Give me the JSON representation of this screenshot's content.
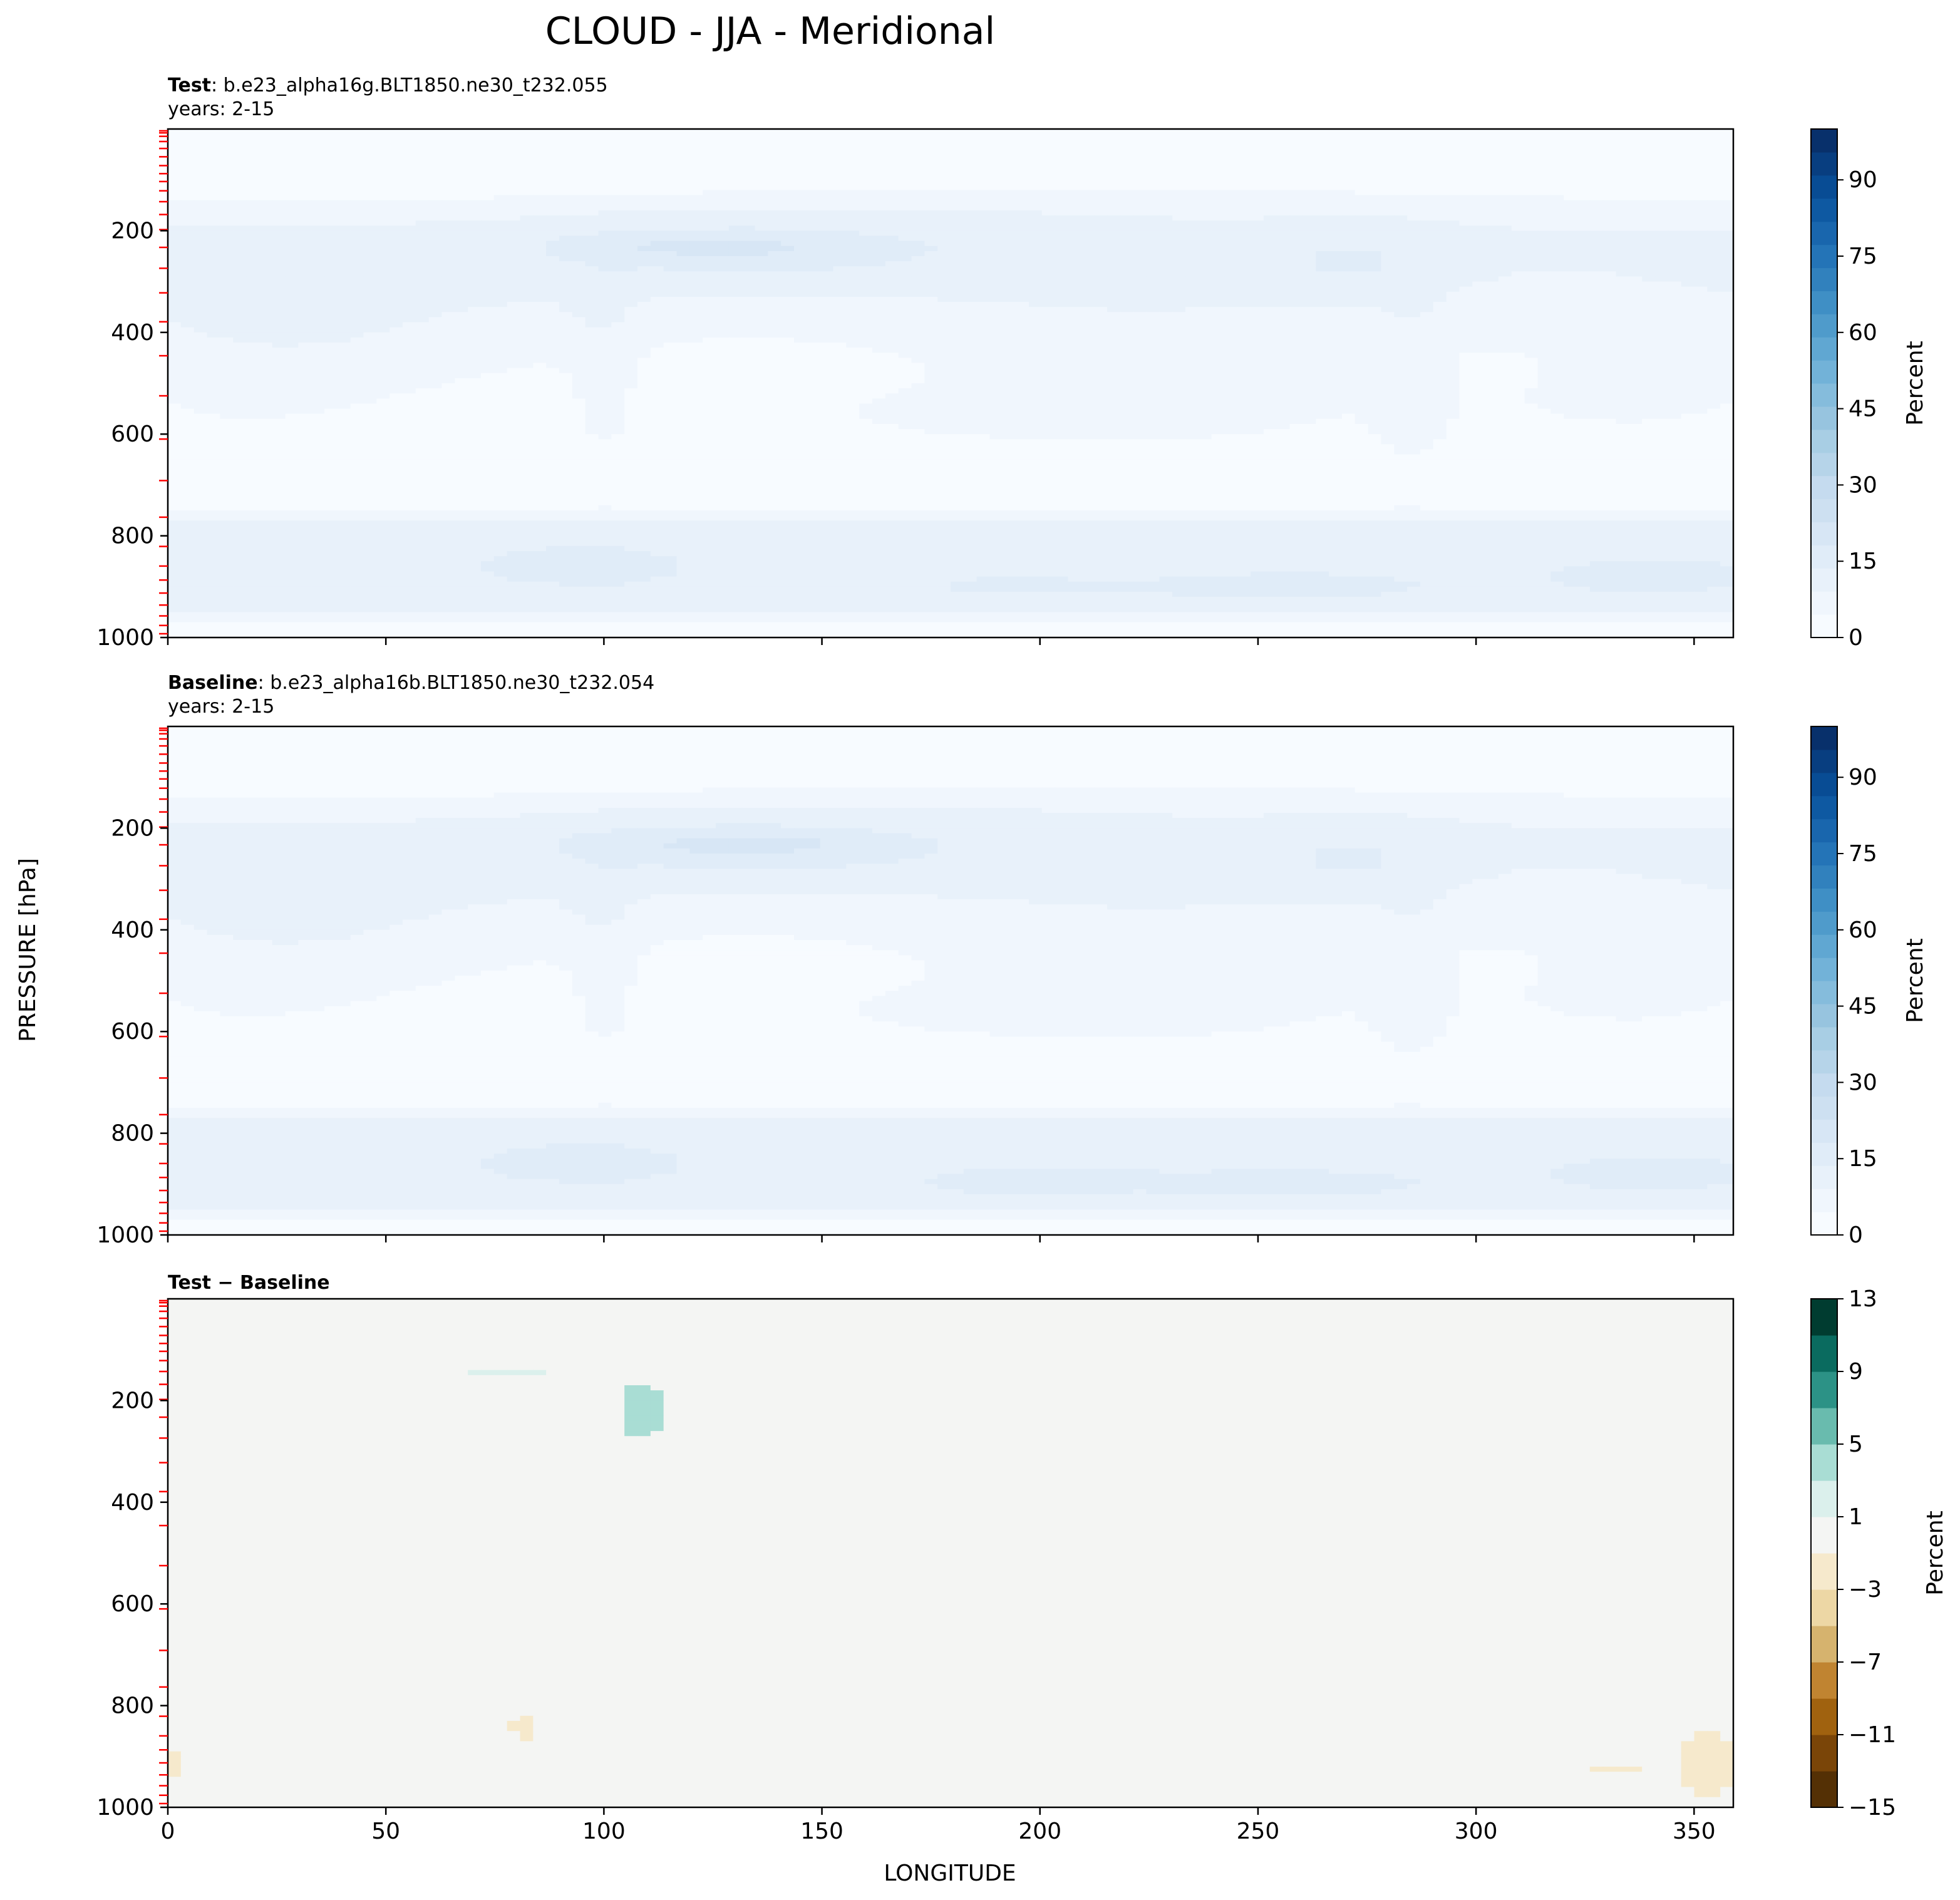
{
  "figure": {
    "title": "CLOUD - JJA - Meridional",
    "ylabel": "PRESSURE [hPa]",
    "xlabel": "LONGITUDE"
  },
  "colors": {
    "blues": [
      "#f7fbff",
      "#f0f6fd",
      "#e8f1fa",
      "#e0ecf8",
      "#d7e6f5",
      "#cde0f1",
      "#c5dbef",
      "#b6d4e9",
      "#a8cee4",
      "#97c4df",
      "#85bcdc",
      "#72b2d8",
      "#60a7d2",
      "#4f9bcb",
      "#3f8fc5",
      "#3181bd",
      "#2474b7",
      "#1966ad",
      "#0e59a2",
      "#084c94",
      "#083e80",
      "#08306b"
    ],
    "brbg": [
      "#543005",
      "#7a4508",
      "#a0620f",
      "#c08431",
      "#d6b36e",
      "#edd7a5",
      "#f6e9cc",
      "#f4f5f3",
      "#dbf0ec",
      "#a9ddd4",
      "#69bbae",
      "#2c9286",
      "#0a6b5f",
      "#003c30"
    ],
    "contour_markers": "#ff0000"
  },
  "chart_data": [
    {
      "type": "heatmap",
      "panel": "test",
      "label_bold": "Test",
      "label_rest": ": b.e23_alpha16g.BLT1850.ne30_t232.055",
      "years": "years: 2-15",
      "x_ticks": [
        "0",
        "50",
        "100",
        "150",
        "200",
        "250",
        "300",
        "350"
      ],
      "x_tick_values": [
        0,
        50,
        100,
        150,
        200,
        250,
        300,
        350
      ],
      "xlim": [
        0,
        359
      ],
      "y_ticks": [
        "200",
        "400",
        "600",
        "800",
        "1000"
      ],
      "y_tick_values": [
        200,
        400,
        600,
        800,
        1000
      ],
      "ylim": [
        1000,
        0
      ],
      "model_levels_hPa": [
        3.6,
        7.6,
        14.4,
        24.6,
        38.3,
        54.6,
        72.0,
        87.8,
        103.3,
        121.5,
        142.9,
        168.2,
        197.9,
        232.8,
        273.9,
        322.2,
        379.1,
        445.9,
        524.7,
        609.8,
        691.4,
        763.4,
        820.9,
        859.5,
        887.0,
        912.6,
        936.2,
        957.5,
        976.3,
        992.6
      ],
      "colorbar": {
        "label": "Percent",
        "ticks": [
          "0",
          "15",
          "30",
          "45",
          "60",
          "75",
          "90"
        ],
        "tick_values": [
          0,
          15,
          30,
          45,
          60,
          75,
          90
        ],
        "range": [
          0,
          100
        ],
        "levels": 22
      },
      "field_approx": {
        "description_units": "cloud fraction %",
        "regions": [
          {
            "lon": [
              0,
              359
            ],
            "p": [
              0,
              160
            ],
            "value": 2
          },
          {
            "lon": [
              0,
              359
            ],
            "p": [
              160,
              400
            ],
            "value": 10
          },
          {
            "lon": [
              100,
              210
            ],
            "p": [
              180,
              320
            ],
            "value": 15
          },
          {
            "lon": [
              90,
              140
            ],
            "p": [
              200,
              300
            ],
            "value": 18
          },
          {
            "lon": [
              0,
              359
            ],
            "p": [
              400,
              760
            ],
            "value": 8
          },
          {
            "lon": [
              0,
              359
            ],
            "p": [
              760,
              960
            ],
            "value": 14
          },
          {
            "lon": [
              90,
              110
            ],
            "p": [
              830,
              880
            ],
            "value": 20
          }
        ]
      }
    },
    {
      "type": "heatmap",
      "panel": "baseline",
      "label_bold": "Baseline",
      "label_rest": ": b.e23_alpha16b.BLT1850.ne30_t232.054",
      "years": "years: 2-15",
      "x_ticks": [
        "0",
        "50",
        "100",
        "150",
        "200",
        "250",
        "300",
        "350"
      ],
      "x_tick_values": [
        0,
        50,
        100,
        150,
        200,
        250,
        300,
        350
      ],
      "xlim": [
        0,
        359
      ],
      "y_ticks": [
        "200",
        "400",
        "600",
        "800",
        "1000"
      ],
      "y_tick_values": [
        200,
        400,
        600,
        800,
        1000
      ],
      "ylim": [
        1000,
        0
      ],
      "colorbar": {
        "label": "Percent",
        "ticks": [
          "0",
          "15",
          "30",
          "45",
          "60",
          "75",
          "90"
        ],
        "tick_values": [
          0,
          15,
          30,
          45,
          60,
          75,
          90
        ],
        "range": [
          0,
          100
        ],
        "levels": 22
      },
      "field_approx": {
        "description_units": "cloud fraction %",
        "regions": [
          {
            "lon": [
              0,
              359
            ],
            "p": [
              0,
              160
            ],
            "value": 2
          },
          {
            "lon": [
              0,
              359
            ],
            "p": [
              160,
              400
            ],
            "value": 10
          },
          {
            "lon": [
              100,
              210
            ],
            "p": [
              180,
              320
            ],
            "value": 15
          },
          {
            "lon": [
              90,
              150
            ],
            "p": [
              200,
              300
            ],
            "value": 18
          },
          {
            "lon": [
              0,
              359
            ],
            "p": [
              400,
              760
            ],
            "value": 8
          },
          {
            "lon": [
              0,
              359
            ],
            "p": [
              760,
              960
            ],
            "value": 14
          },
          {
            "lon": [
              90,
              110
            ],
            "p": [
              830,
              880
            ],
            "value": 20
          }
        ]
      }
    },
    {
      "type": "heatmap",
      "panel": "difference",
      "label_bold": "Test − Baseline",
      "x_ticks": [
        "0",
        "50",
        "100",
        "150",
        "200",
        "250",
        "300",
        "350"
      ],
      "x_tick_values": [
        0,
        50,
        100,
        150,
        200,
        250,
        300,
        350
      ],
      "xlim": [
        0,
        359
      ],
      "y_ticks": [
        "200",
        "400",
        "600",
        "800",
        "1000"
      ],
      "y_tick_values": [
        200,
        400,
        600,
        800,
        1000
      ],
      "ylim": [
        1000,
        0
      ],
      "colorbar": {
        "label": "Percent",
        "ticks": [
          "13",
          "9",
          "5",
          "1",
          "−3",
          "−7",
          "−11",
          "−15"
        ],
        "tick_values": [
          13,
          9,
          5,
          1,
          -3,
          -7,
          -11,
          -15
        ],
        "range": [
          -15,
          13
        ],
        "levels": 14
      },
      "anomalies": [
        {
          "lon": [
            69,
            88
          ],
          "p": [
            135,
            155
          ],
          "value": 2
        },
        {
          "lon": [
            104,
            114
          ],
          "p": [
            165,
            275
          ],
          "value": 3
        },
        {
          "lon": [
            79,
            85
          ],
          "p": [
            815,
            870
          ],
          "value": -2
        },
        {
          "lon": [
            0,
            3
          ],
          "p": [
            890,
            940
          ],
          "value": -2
        },
        {
          "lon": [
            327,
            337
          ],
          "p": [
            915,
            935
          ],
          "value": -2
        },
        {
          "lon": [
            347,
            359
          ],
          "p": [
            845,
            980
          ],
          "value": -2
        }
      ]
    }
  ]
}
